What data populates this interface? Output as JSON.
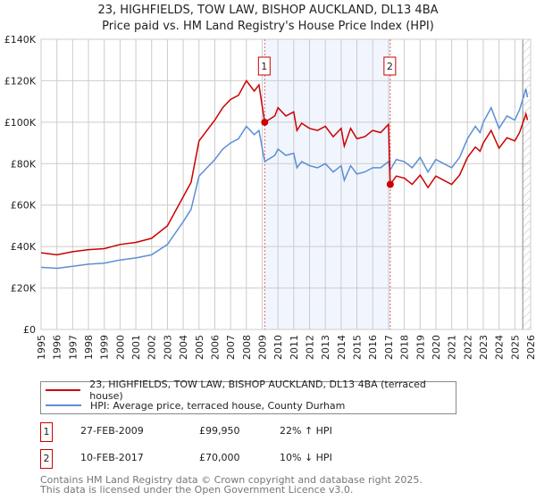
{
  "title": "23, HIGHFIELDS, TOW LAW, BISHOP AUCKLAND, DL13 4BA",
  "subtitle": "Price paid vs. HM Land Registry's House Price Index (HPI)",
  "chart_data": {
    "type": "line",
    "xlim": [
      1995,
      2026
    ],
    "ylim": [
      0,
      140000
    ],
    "grid": true,
    "x_ticks": [
      1995,
      1996,
      1997,
      1998,
      1999,
      2000,
      2001,
      2002,
      2003,
      2004,
      2005,
      2006,
      2007,
      2008,
      2009,
      2010,
      2011,
      2012,
      2013,
      2014,
      2015,
      2016,
      2017,
      2018,
      2019,
      2020,
      2021,
      2022,
      2023,
      2024,
      2025,
      2026
    ],
    "y_ticks": [
      0,
      20000,
      40000,
      60000,
      80000,
      100000,
      120000,
      140000
    ],
    "y_tick_labels": [
      "£0",
      "£20K",
      "£40K",
      "£60K",
      "£80K",
      "£100K",
      "£120K",
      "£140K"
    ],
    "x": [
      1995,
      1996,
      1997,
      1998,
      1999,
      2000,
      2001,
      2002,
      2003,
      2004,
      2004.5,
      2005,
      2006,
      2006.5,
      2007,
      2007.5,
      2008,
      2008.5,
      2008.8,
      2009.16,
      2009.8,
      2010,
      2010.5,
      2011,
      2011.2,
      2011.5,
      2012,
      2012.5,
      2013,
      2013.5,
      2014,
      2014.2,
      2014.6,
      2015,
      2015.5,
      2016,
      2016.5,
      2017,
      2017.11,
      2017.5,
      2018,
      2018.5,
      2019,
      2019.5,
      2020,
      2020.5,
      2021,
      2021.5,
      2022,
      2022.5,
      2022.8,
      2023,
      2023.5,
      2024,
      2024.5,
      2025,
      2025.3,
      2025.7,
      2025.8
    ],
    "series": [
      {
        "name": "23, HIGHFIELDS, TOW LAW, BISHOP AUCKLAND, DL13 4BA (terraced house)",
        "color": "#cc0000",
        "values": [
          37000,
          36000,
          37500,
          38500,
          39000,
          41000,
          42000,
          44000,
          50000,
          64000,
          71000,
          91000,
          101000,
          107000,
          111000,
          113000,
          120000,
          115000,
          118000,
          99950,
          103000,
          107000,
          103000,
          105000,
          96000,
          99500,
          97000,
          96000,
          98000,
          93000,
          97000,
          88500,
          97000,
          92000,
          93000,
          96000,
          95000,
          99000,
          70000,
          74000,
          73000,
          70000,
          74500,
          68500,
          74000,
          72000,
          70000,
          74500,
          83000,
          88000,
          86000,
          90000,
          96000,
          87500,
          92500,
          91000,
          95000,
          104000,
          101000
        ]
      },
      {
        "name": "HPI: Average price, terraced house, County Durham",
        "color": "#5b8fd6",
        "values": [
          30000,
          29500,
          30500,
          31500,
          32000,
          33500,
          34500,
          36000,
          41000,
          52000,
          58000,
          74000,
          82000,
          87000,
          90000,
          92000,
          98000,
          94000,
          96000,
          81000,
          84000,
          87000,
          84000,
          85000,
          78000,
          81000,
          79000,
          78000,
          80000,
          76000,
          79000,
          72000,
          79000,
          75000,
          76000,
          78000,
          78000,
          81000,
          77000,
          82000,
          81000,
          78000,
          83000,
          76000,
          82000,
          80000,
          78000,
          83000,
          92000,
          98000,
          95000,
          100000,
          107000,
          97000,
          103000,
          101000,
          106000,
          116000,
          112000
        ]
      }
    ],
    "shaded_range": [
      2009.16,
      2017.11
    ],
    "forecast_hatch_from": 2025.5,
    "annotations": [
      {
        "label": "1",
        "x": 2009.16,
        "y": 99950
      },
      {
        "label": "2",
        "x": 2017.11,
        "y": 70000
      }
    ],
    "legend_position": "below"
  },
  "legend": {
    "items": [
      {
        "label": "23, HIGHFIELDS, TOW LAW, BISHOP AUCKLAND, DL13 4BA (terraced house)",
        "color": "#cc0000"
      },
      {
        "label": "HPI: Average price, terraced house, County Durham",
        "color": "#5b8fd6"
      }
    ]
  },
  "transactions": [
    {
      "num": "1",
      "date": "27-FEB-2009",
      "price": "£99,950",
      "hpi": "22% ↑ HPI"
    },
    {
      "num": "2",
      "date": "10-FEB-2017",
      "price": "£70,000",
      "hpi": "10% ↓ HPI"
    }
  ],
  "footer": {
    "line1": "Contains HM Land Registry data © Crown copyright and database right 2025.",
    "line2": "This data is licensed under the Open Government Licence v3.0."
  }
}
